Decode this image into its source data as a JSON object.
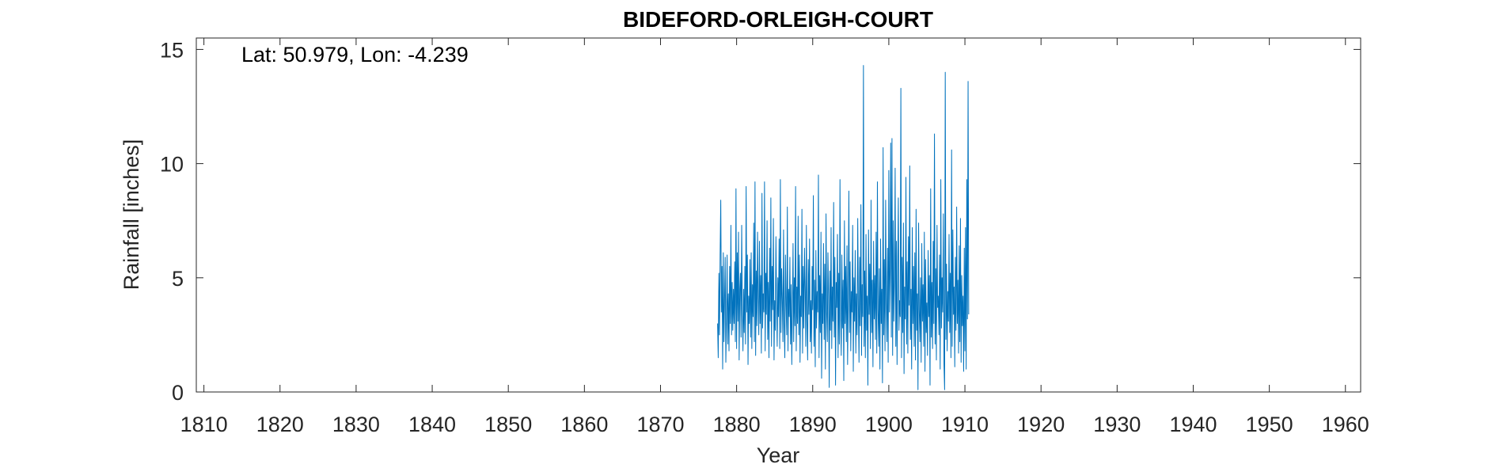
{
  "chart_data": {
    "type": "line",
    "title": "BIDEFORD-ORLEIGH-COURT",
    "annotation": "Lat: 50.979, Lon: -4.239",
    "xlabel": "Year",
    "ylabel": "Rainfall [inches]",
    "xlim": [
      1809,
      1962
    ],
    "ylim": [
      0,
      15.5
    ],
    "xticks": [
      1810,
      1820,
      1830,
      1840,
      1850,
      1860,
      1870,
      1880,
      1890,
      1900,
      1910,
      1920,
      1930,
      1940,
      1950,
      1960
    ],
    "yticks": [
      0,
      5,
      10,
      15
    ],
    "color": "#0072BD",
    "grid": false,
    "series": [
      {
        "name": "",
        "x_start": 1877.5,
        "x_step_years": 0.08333,
        "values": [
          3.0,
          1.5,
          5.2,
          2.5,
          6.0,
          8.4,
          3.5,
          5.5,
          1.0,
          6.1,
          2.2,
          4.0,
          5.9,
          1.3,
          3.2,
          6.0,
          2.1,
          4.3,
          1.8,
          5.5,
          3.0,
          7.3,
          2.5,
          4.8,
          2.7,
          4.5,
          3.0,
          5.7,
          2.2,
          8.9,
          1.9,
          6.1,
          3.1,
          7.0,
          1.4,
          4.5,
          5.2,
          2.4,
          7.3,
          3.6,
          1.8,
          4.5,
          2.6,
          5.5,
          2.1,
          9.0,
          3.5,
          6.0,
          1.2,
          4.2,
          3.0,
          5.8,
          2.4,
          6.1,
          1.9,
          4.7,
          3.3,
          7.4,
          2.2,
          9.2,
          1.6,
          5.3,
          2.9,
          7.0,
          4.1,
          2.5,
          6.6,
          3.0,
          5.1,
          1.7,
          8.7,
          2.8,
          4.3,
          3.5,
          9.2,
          1.8,
          5.2,
          3.4,
          7.5,
          2.3,
          4.8,
          1.5,
          6.3,
          3.1,
          8.5,
          2.0,
          5.5,
          3.6,
          7.6,
          1.4,
          4.0,
          2.7,
          6.8,
          3.9,
          2.0,
          5.0,
          3.3,
          6.7,
          1.9,
          9.3,
          2.6,
          5.4,
          4.1,
          2.2,
          7.1,
          3.0,
          1.5,
          6.0,
          3.8,
          2.5,
          8.1,
          1.8,
          4.5,
          3.3,
          5.9,
          2.1,
          4.7,
          1.2,
          3.6,
          6.5,
          2.2,
          5.0,
          2.9,
          9.0,
          1.8,
          4.6,
          3.0,
          7.7,
          2.5,
          6.0,
          1.3,
          4.2,
          3.3,
          8.0,
          1.7,
          5.5,
          2.8,
          6.3,
          4.5,
          2.0,
          7.3,
          3.1,
          1.4,
          5.8,
          3.4,
          6.7,
          2.2,
          4.0,
          1.7,
          5.5,
          3.6,
          8.6,
          2.0,
          4.9,
          1.1,
          6.2,
          2.8,
          4.4,
          3.5,
          9.5,
          1.5,
          5.1,
          2.6,
          7.0,
          0.6,
          4.3,
          3.0,
          6.5,
          2.3,
          5.6,
          1.0,
          7.8,
          3.5,
          2.2,
          6.1,
          4.2,
          0.2,
          5.3,
          2.7,
          7.2,
          1.9,
          4.6,
          3.1,
          8.3,
          2.4,
          5.9,
          0.3,
          4.8,
          3.7,
          6.9,
          1.5,
          5.2,
          2.1,
          9.3,
          3.3,
          1.6,
          6.0,
          2.8,
          4.9,
          0.5,
          7.5,
          3.0,
          5.5,
          2.2,
          6.4,
          1.2,
          4.1,
          8.8,
          2.6,
          5.7,
          1.8,
          4.4,
          3.5,
          7.3,
          0.9,
          5.0,
          3.1,
          6.2,
          1.7,
          4.3,
          2.5,
          7.6,
          3.8,
          1.3,
          5.9,
          2.9,
          8.2,
          1.6,
          4.7,
          3.3,
          14.3,
          2.0,
          5.3,
          1.5,
          6.9,
          2.7,
          4.2,
          0.3,
          7.1,
          3.4,
          5.6,
          1.9,
          8.4,
          2.6,
          4.9,
          1.1,
          6.6,
          3.2,
          5.1,
          2.3,
          7.0,
          1.7,
          9.2,
          3.6,
          2.0,
          5.4,
          1.0,
          6.7,
          3.0,
          4.5,
          0.4,
          10.7,
          2.5,
          5.8,
          1.8,
          8.4,
          3.9,
          2.2,
          6.3,
          1.3,
          9.7,
          3.5,
          5.2,
          10.9,
          2.4,
          11.1,
          1.6,
          7.5,
          3.1,
          4.8,
          9.8,
          2.0,
          6.6,
          1.2,
          5.3,
          8.5,
          2.7,
          4.0,
          3.3,
          13.3,
          1.5,
          5.9,
          2.6,
          7.4,
          0.8,
          4.6,
          3.2,
          9.4,
          2.1,
          5.7,
          1.7,
          6.8,
          3.8,
          9.9,
          2.3,
          4.5,
          1.0,
          7.2,
          3.0,
          5.5,
          2.0,
          6.1,
          1.4,
          8.0,
          2.7,
          4.3,
          0.1,
          7.4,
          3.6,
          2.2,
          5.0,
          1.3,
          6.5,
          3.1,
          4.7,
          2.0,
          7.0,
          0.9,
          5.8,
          2.6,
          3.9,
          1.6,
          6.2,
          3.3,
          5.1,
          0.3,
          8.9,
          2.4,
          4.8,
          1.9,
          6.6,
          3.0,
          11.3,
          2.1,
          5.4,
          1.4,
          7.3,
          3.7,
          4.2,
          2.5,
          6.0,
          1.0,
          9.3,
          2.8,
          5.0,
          3.5,
          7.8,
          1.2,
          0.1,
          14.0,
          2.3,
          5.6,
          1.8,
          4.4,
          3.1,
          6.9,
          2.6,
          5.2,
          1.5,
          10.6,
          2.0,
          7.1,
          3.4,
          4.6,
          1.1,
          5.9,
          2.7,
          8.1,
          3.0,
          4.9,
          1.7,
          6.4,
          2.2,
          7.6,
          1.3,
          5.1,
          2.9,
          4.2,
          0.9,
          6.3,
          1.8,
          7.2,
          1.0,
          9.3,
          3.2,
          13.6,
          3.4
        ]
      }
    ]
  }
}
